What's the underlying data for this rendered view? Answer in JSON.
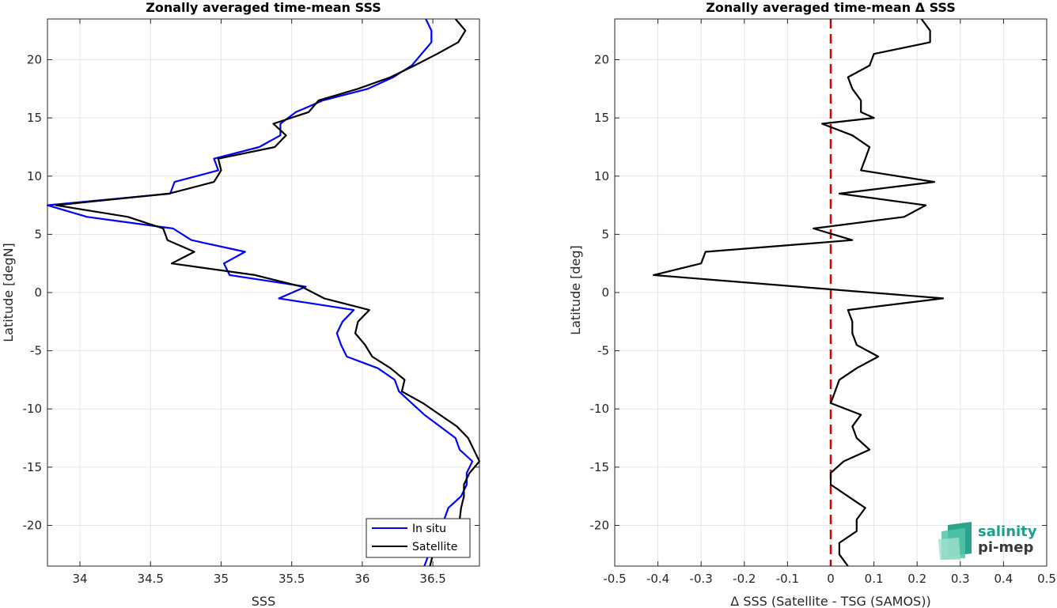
{
  "chart_data": [
    {
      "type": "line",
      "title": "Zonally averaged time-mean SSS",
      "xlabel": "SSS",
      "ylabel": "Latitude [degN]",
      "xlim": [
        33.77,
        36.83
      ],
      "ylim": [
        -23.5,
        23.5
      ],
      "xticks": [
        34,
        34.5,
        35,
        35.5,
        36,
        36.5
      ],
      "yticks": [
        -20,
        -15,
        -10,
        -5,
        0,
        5,
        10,
        15,
        20
      ],
      "grid": true,
      "legend_position": "bottom-right",
      "series": [
        {
          "name": "In situ",
          "color": "#0000ff",
          "points": [
            [
              36.45,
              23.5
            ],
            [
              36.49,
              22.5
            ],
            [
              36.49,
              21.5
            ],
            [
              36.42,
              20.5
            ],
            [
              36.35,
              19.5
            ],
            [
              36.22,
              18.5
            ],
            [
              36.04,
              17.5
            ],
            [
              35.72,
              16.5
            ],
            [
              35.53,
              15.5
            ],
            [
              35.42,
              14.5
            ],
            [
              35.42,
              13.5
            ],
            [
              35.27,
              12.5
            ],
            [
              34.95,
              11.5
            ],
            [
              34.98,
              10.5
            ],
            [
              34.67,
              9.5
            ],
            [
              34.64,
              8.5
            ],
            [
              33.77,
              7.5
            ],
            [
              34.05,
              6.5
            ],
            [
              34.66,
              5.5
            ],
            [
              34.79,
              4.5
            ],
            [
              35.17,
              3.5
            ],
            [
              35.02,
              2.5
            ],
            [
              35.06,
              1.5
            ],
            [
              35.6,
              0.5
            ],
            [
              35.41,
              -0.5
            ],
            [
              35.94,
              -1.5
            ],
            [
              35.86,
              -2.5
            ],
            [
              35.82,
              -3.5
            ],
            [
              35.85,
              -4.5
            ],
            [
              35.89,
              -5.5
            ],
            [
              36.11,
              -6.5
            ],
            [
              36.23,
              -7.5
            ],
            [
              36.26,
              -8.5
            ],
            [
              36.35,
              -9.5
            ],
            [
              36.44,
              -10.5
            ],
            [
              36.55,
              -11.5
            ],
            [
              36.66,
              -12.5
            ],
            [
              36.69,
              -13.5
            ],
            [
              36.78,
              -14.5
            ],
            [
              36.74,
              -15.5
            ],
            [
              36.74,
              -16.5
            ],
            [
              36.7,
              -17.5
            ],
            [
              36.61,
              -18.5
            ],
            [
              36.58,
              -19.5
            ],
            [
              36.55,
              -20.5
            ],
            [
              36.52,
              -21.5
            ],
            [
              36.47,
              -22.5
            ],
            [
              36.44,
              -23.5
            ]
          ]
        },
        {
          "name": "Satellite",
          "color": "#000000",
          "points": [
            [
              36.66,
              23.5
            ],
            [
              36.73,
              22.5
            ],
            [
              36.68,
              21.5
            ],
            [
              36.53,
              20.5
            ],
            [
              36.37,
              19.5
            ],
            [
              36.2,
              18.5
            ],
            [
              35.97,
              17.5
            ],
            [
              35.69,
              16.5
            ],
            [
              35.62,
              15.5
            ],
            [
              35.37,
              14.5
            ],
            [
              35.46,
              13.5
            ],
            [
              35.38,
              12.5
            ],
            [
              34.98,
              11.5
            ],
            [
              35.0,
              10.5
            ],
            [
              34.95,
              9.5
            ],
            [
              34.63,
              8.5
            ],
            [
              33.83,
              7.5
            ],
            [
              34.34,
              6.5
            ],
            [
              34.59,
              5.5
            ],
            [
              34.62,
              4.5
            ],
            [
              34.81,
              3.5
            ],
            [
              34.65,
              2.5
            ],
            [
              35.24,
              1.5
            ],
            [
              35.57,
              0.5
            ],
            [
              35.73,
              -0.5
            ],
            [
              36.05,
              -1.5
            ],
            [
              35.97,
              -2.5
            ],
            [
              35.95,
              -3.5
            ],
            [
              36.02,
              -4.5
            ],
            [
              36.07,
              -5.5
            ],
            [
              36.2,
              -6.5
            ],
            [
              36.3,
              -7.5
            ],
            [
              36.28,
              -8.5
            ],
            [
              36.43,
              -9.5
            ],
            [
              36.55,
              -10.5
            ],
            [
              36.67,
              -11.5
            ],
            [
              36.75,
              -12.5
            ],
            [
              36.79,
              -13.5
            ],
            [
              36.83,
              -14.5
            ],
            [
              36.76,
              -15.5
            ],
            [
              36.72,
              -16.5
            ],
            [
              36.72,
              -17.5
            ],
            [
              36.7,
              -18.5
            ],
            [
              36.69,
              -19.5
            ],
            [
              36.64,
              -20.5
            ],
            [
              36.58,
              -21.5
            ],
            [
              36.5,
              -22.5
            ],
            [
              36.48,
              -23.5
            ]
          ]
        }
      ]
    },
    {
      "type": "line",
      "title": "Zonally averaged time-mean Δ SSS",
      "xlabel": "Δ SSS (Satellite - TSG (SAMOS))",
      "ylabel": "Latitude [deg]",
      "xlim": [
        -0.5,
        0.5
      ],
      "ylim": [
        -23.5,
        23.5
      ],
      "xticks": [
        -0.5,
        -0.4,
        -0.3,
        -0.2,
        -0.1,
        0,
        0.1,
        0.2,
        0.3,
        0.4,
        0.5
      ],
      "yticks": [
        -20,
        -15,
        -10,
        -5,
        0,
        5,
        10,
        15,
        20
      ],
      "grid": true,
      "reference_line": {
        "x": 0,
        "color": "#dd0000",
        "style": "dashed"
      },
      "series": [
        {
          "color": "#000000",
          "points": [
            [
              0.21,
              23.5
            ],
            [
              0.23,
              22.5
            ],
            [
              0.23,
              21.5
            ],
            [
              0.1,
              20.5
            ],
            [
              0.09,
              19.5
            ],
            [
              0.04,
              18.5
            ],
            [
              0.05,
              17.5
            ],
            [
              0.07,
              16.5
            ],
            [
              0.07,
              15.5
            ],
            [
              0.1,
              15.0
            ],
            [
              -0.02,
              14.5
            ],
            [
              0.05,
              13.5
            ],
            [
              0.09,
              12.5
            ],
            [
              0.08,
              11.5
            ],
            [
              0.07,
              10.5
            ],
            [
              0.24,
              9.5
            ],
            [
              0.02,
              8.5
            ],
            [
              0.22,
              7.5
            ],
            [
              0.17,
              6.5
            ],
            [
              -0.04,
              5.5
            ],
            [
              0.05,
              4.5
            ],
            [
              -0.29,
              3.5
            ],
            [
              -0.3,
              2.5
            ],
            [
              -0.41,
              1.5
            ],
            [
              0.26,
              -0.5
            ],
            [
              0.04,
              -1.5
            ],
            [
              0.05,
              -2.5
            ],
            [
              0.05,
              -3.5
            ],
            [
              0.06,
              -4.5
            ],
            [
              0.11,
              -5.5
            ],
            [
              0.06,
              -6.5
            ],
            [
              0.02,
              -7.5
            ],
            [
              0.01,
              -8.5
            ],
            [
              0.0,
              -9.5
            ],
            [
              0.07,
              -10.5
            ],
            [
              0.05,
              -11.5
            ],
            [
              0.06,
              -12.5
            ],
            [
              0.09,
              -13.5
            ],
            [
              0.03,
              -14.5
            ],
            [
              0.0,
              -15.5
            ],
            [
              0.0,
              -16.5
            ],
            [
              0.04,
              -17.5
            ],
            [
              0.08,
              -18.5
            ],
            [
              0.06,
              -19.5
            ],
            [
              0.06,
              -20.5
            ],
            [
              0.02,
              -21.5
            ],
            [
              0.02,
              -22.5
            ],
            [
              0.04,
              -23.5
            ]
          ]
        }
      ]
    }
  ],
  "legend": {
    "items": [
      {
        "label": "In situ",
        "color": "#0000ff"
      },
      {
        "label": "Satellite",
        "color": "#000000"
      }
    ]
  },
  "logo": {
    "line1": "salinity",
    "line2": "pi-mep"
  }
}
